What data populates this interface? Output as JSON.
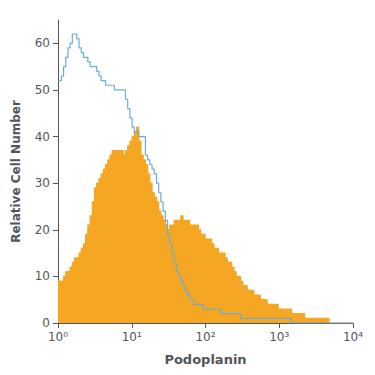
{
  "chart_data": {
    "type": "line",
    "log": "x",
    "xlabel": "Podoplanin",
    "ylabel": "Relative Cell Number",
    "xlim": [
      1,
      10000
    ],
    "xticks": [
      {
        "value": 1,
        "label": "10⁰"
      },
      {
        "value": 10,
        "label": "10¹"
      },
      {
        "value": 100,
        "label": "10²"
      },
      {
        "value": 1000,
        "label": "10³"
      },
      {
        "value": 10000,
        "label": "10⁴"
      }
    ],
    "ylim": [
      0,
      65
    ],
    "yticks": [
      0,
      10,
      20,
      30,
      40,
      50,
      60
    ],
    "grid": false,
    "x": [
      1.0,
      1.07,
      1.15,
      1.23,
      1.32,
      1.41,
      1.51,
      1.62,
      1.74,
      1.86,
      2.0,
      2.14,
      2.29,
      2.45,
      2.63,
      2.82,
      3.02,
      3.24,
      3.47,
      3.72,
      3.98,
      4.27,
      4.57,
      4.9,
      5.25,
      5.62,
      6.03,
      6.46,
      6.92,
      7.41,
      7.94,
      8.51,
      9.12,
      9.77,
      10.47,
      11.22,
      12.02,
      12.88,
      13.8,
      14.79,
      15.85,
      16.98,
      18.2,
      19.5,
      20.89,
      22.39,
      23.99,
      25.7,
      27.54,
      29.51,
      31.62,
      33.88,
      36.31,
      38.9,
      41.69,
      44.67,
      47.86,
      51.29,
      54.95,
      58.88,
      63.1,
      67.61,
      72.44,
      77.62,
      83.18,
      89.13,
      95.5,
      102.33,
      109.65,
      117.49,
      125.89,
      134.9,
      144.54,
      154.88,
      165.96,
      177.83,
      190.55,
      204.17,
      218.78,
      234.42,
      251.19,
      269.15,
      288.4,
      309.03,
      331.13,
      354.81,
      380.19,
      407.38,
      436.52,
      467.74,
      501.19,
      537.03,
      575.44,
      616.6,
      660.69,
      707.95,
      758.58,
      812.83,
      870.96,
      933.25,
      1000.0,
      1071.5,
      1148.2,
      1230.3,
      1318.3,
      1412.5,
      1513.6,
      1621.8,
      1737.8,
      1862.1,
      1995.3,
      2138.0,
      2290.9,
      2455.0,
      2630.3,
      2817.6,
      3019.9,
      3235.9,
      3467.4,
      3715.4,
      3981.1,
      4265.8,
      4570.9,
      4898.1,
      5248.1,
      5623.4,
      6025.6,
      6456.5,
      6918.3,
      7411.8,
      7943.3,
      8511.4,
      9120.1,
      9772.4,
      10000.0
    ],
    "series": [
      {
        "type": "area",
        "color": "#f5a623",
        "values": [
          9,
          9,
          9,
          10,
          11,
          11,
          12,
          13,
          14,
          14,
          15,
          16,
          17,
          19,
          21,
          23,
          26,
          29,
          30,
          31,
          32,
          33,
          34,
          35,
          36,
          37,
          37,
          37,
          37,
          37,
          36,
          37,
          38,
          39,
          40,
          41,
          42,
          39,
          36,
          35,
          34,
          32,
          30,
          28,
          27,
          26,
          24,
          23,
          22,
          21,
          20,
          21,
          21,
          22,
          22,
          22,
          23,
          22,
          22,
          22,
          21,
          21,
          21,
          21,
          20,
          19,
          19,
          18,
          18,
          18,
          17,
          16,
          16,
          15,
          15,
          15,
          14,
          13,
          13,
          12,
          11,
          10,
          10,
          9,
          8,
          8,
          7,
          7,
          7,
          6,
          6,
          6,
          5,
          5,
          5,
          4,
          4,
          4,
          4,
          4,
          3,
          3,
          3,
          3,
          3,
          3,
          2,
          2,
          2,
          2,
          2,
          2,
          1,
          1,
          1,
          1,
          1,
          1,
          1,
          1,
          1,
          1,
          1,
          0,
          0,
          0,
          0,
          0,
          0,
          0,
          0,
          0,
          0,
          0,
          0
        ]
      },
      {
        "type": "line",
        "color": "#6aaed6",
        "values": [
          52,
          52,
          53,
          55,
          57,
          59,
          60,
          62,
          62,
          61,
          59,
          58,
          57,
          57,
          56,
          55,
          55,
          55,
          54,
          53,
          52,
          52,
          51,
          51,
          51,
          51,
          50,
          50,
          50,
          50,
          50,
          48,
          46,
          44,
          42,
          41,
          41,
          40,
          40,
          40,
          36,
          35,
          34,
          33,
          32,
          30,
          28,
          26,
          24,
          22,
          19,
          17,
          15,
          13,
          11,
          10,
          9,
          8,
          7,
          6,
          5,
          5,
          4,
          4,
          4,
          4,
          3,
          3,
          3,
          3,
          3,
          3,
          3,
          3,
          2,
          2,
          2,
          2,
          2,
          2,
          2,
          2,
          2,
          1,
          1,
          1,
          1,
          1,
          1,
          1,
          1,
          1,
          1,
          1,
          1,
          1,
          1,
          1,
          1,
          1,
          1,
          1,
          1,
          1,
          1,
          1,
          0,
          0,
          0,
          0,
          0,
          0,
          0,
          0,
          0,
          0,
          0,
          0,
          0,
          0,
          0,
          0,
          0,
          0,
          0,
          0,
          0,
          0,
          0,
          0,
          0,
          0,
          0,
          0,
          0
        ]
      }
    ]
  }
}
